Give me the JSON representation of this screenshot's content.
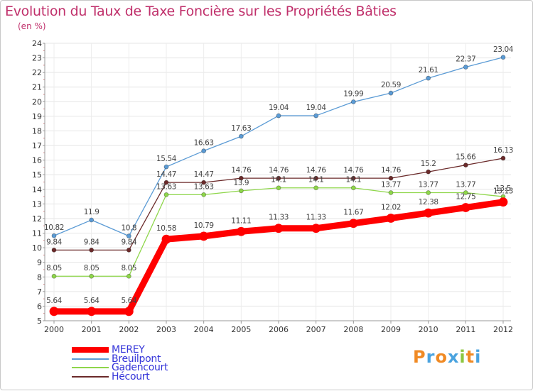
{
  "header": {
    "title": "Evolution du Taux de Taxe Foncière sur les Propriétés Bâties",
    "unit": "(en %)"
  },
  "logo": {
    "text": "Proxiti",
    "letters": [
      {
        "char": "P",
        "color": "#f08a24"
      },
      {
        "char": "r",
        "color": "#4aa3df"
      },
      {
        "char": "o",
        "color": "#f08a24"
      },
      {
        "char": "x",
        "color": "#4aa3df"
      },
      {
        "char": "i",
        "color": "#8cc63f"
      },
      {
        "char": "t",
        "color": "#f08a24"
      },
      {
        "char": "i",
        "color": "#4aa3df"
      }
    ]
  },
  "chart_data": {
    "type": "line",
    "title": "Evolution du Taux de Taxe Foncière sur les Propriétés Bâties",
    "ylabel": "(en %)",
    "xlabel": "",
    "ylim": [
      5,
      24
    ],
    "yticks": [
      "5",
      "6",
      "7",
      "8",
      "9",
      "10",
      "11",
      "12",
      "13",
      "14",
      "15",
      "16",
      "17",
      "18",
      "19",
      "20",
      "21",
      "22",
      "23",
      "24"
    ],
    "x": [
      "2000",
      "2001",
      "2002",
      "2003",
      "2004",
      "2005",
      "2006",
      "2007",
      "2008",
      "2009",
      "2010",
      "2011",
      "2012"
    ],
    "grid": true,
    "legend_position": "bottom-left",
    "series": [
      {
        "name": "Breuilpont",
        "color": "#5b9bd5",
        "values": [
          10.82,
          11.9,
          10.8,
          15.54,
          16.63,
          17.63,
          19.04,
          19.04,
          19.99,
          20.59,
          21.61,
          22.37,
          23.04
        ],
        "labels": [
          "10.82",
          "11.9",
          "10.8",
          "15.54",
          "16.63",
          "17.63",
          "19.04",
          "19.04",
          "19.99",
          "20.59",
          "21.61",
          "22.37",
          "23.04"
        ]
      },
      {
        "name": "Hécourt",
        "color": "#6b2a2a",
        "values": [
          9.84,
          9.84,
          9.84,
          14.47,
          14.47,
          14.76,
          14.76,
          14.76,
          14.76,
          14.76,
          15.2,
          15.66,
          16.13
        ],
        "labels": [
          "9.84",
          "9.84",
          "9.84",
          "14.47",
          "14.47",
          "14.76",
          "14.76",
          "14.76",
          "14.76",
          "14.76",
          "15.2",
          "15.66",
          "16.13"
        ]
      },
      {
        "name": "Gadencourt",
        "color": "#8ed64a",
        "values": [
          8.05,
          8.05,
          8.05,
          13.63,
          13.63,
          13.9,
          14.1,
          14.1,
          14.1,
          13.77,
          13.77,
          13.77,
          13.5
        ],
        "labels": [
          "8.05",
          "8.05",
          "8.05",
          "13.63",
          "13.63",
          "13.9",
          "14.1",
          "14.1",
          "14.1",
          "13.77",
          "13.77",
          "13.77",
          "13.5"
        ]
      },
      {
        "name": "MEREY",
        "color": "#ff0000",
        "values": [
          5.64,
          5.64,
          5.64,
          10.58,
          10.79,
          11.11,
          11.33,
          11.33,
          11.67,
          12.02,
          12.38,
          12.75,
          13.13
        ],
        "labels": [
          "5.64",
          "5.64",
          "5.64",
          "10.58",
          "10.79",
          "11.11",
          "11.33",
          "11.33",
          "11.67",
          "12.02",
          "12.38",
          "12.75",
          "13.13"
        ]
      }
    ],
    "legend": [
      {
        "name": "MEREY",
        "color": "#ff0000"
      },
      {
        "name": "Breuilpont",
        "color": "#5b9bd5"
      },
      {
        "name": "Gadencourt",
        "color": "#8ed64a"
      },
      {
        "name": "Hécourt",
        "color": "#6b2a2a"
      }
    ]
  }
}
